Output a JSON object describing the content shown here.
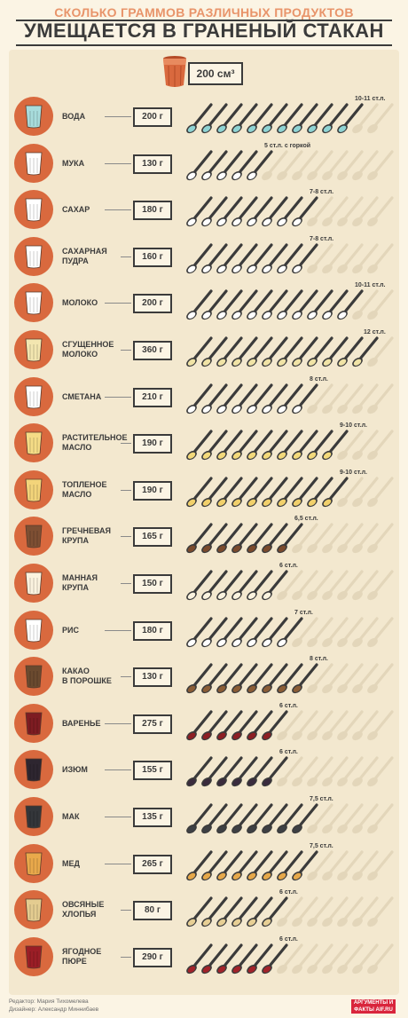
{
  "header": {
    "subtitle": "СКОЛЬКО ГРАММОВ РАЗЛИЧНЫХ ПРОДУКТОВ",
    "title": "УМЕЩАЕТСЯ В ГРАНЕНЫЙ СТАКАН"
  },
  "volume": {
    "value": "200",
    "unit": "см³"
  },
  "colors": {
    "accent": "#d9693e",
    "dark": "#3b3b3b",
    "panel": "#f3e8cf",
    "empty_spoon": "#e3d6ba"
  },
  "products": [
    {
      "name": "ВОДА",
      "weight": "200 г",
      "spoons": 10.5,
      "label": "10-11 ст.л.",
      "fill": "#8ed3d3",
      "glass": "#a8dcdc",
      "glass_icon": "water-glass-icon"
    },
    {
      "name": "МУКА",
      "weight": "130 г",
      "spoons": 5,
      "label": "5 ст.л. с горкой",
      "fill": "#ffffff",
      "glass": "#ffffff",
      "glass_icon": "flour-glass-icon"
    },
    {
      "name": "САХАР",
      "weight": "180 г",
      "spoons": 7.5,
      "label": "7-8 ст.л.",
      "fill": "#ffffff",
      "glass": "#ffffff",
      "glass_icon": "sugar-glass-icon"
    },
    {
      "name": "САХАРНАЯ ПУДРА",
      "weight": "160 г",
      "spoons": 7.5,
      "label": "7-8 ст.л.",
      "fill": "#ffffff",
      "glass": "#ffffff",
      "glass_icon": "powdered-sugar-glass-icon"
    },
    {
      "name": "МОЛОКО",
      "weight": "200 г",
      "spoons": 10.5,
      "label": "10-11 ст.л.",
      "fill": "#ffffff",
      "glass": "#ffffff",
      "glass_icon": "milk-glass-icon"
    },
    {
      "name": "СГУЩЕННОЕ МОЛОКО",
      "weight": "360 г",
      "spoons": 12,
      "label": "12 ст.л.",
      "fill": "#f0e3a6",
      "glass": "#f3e6b0",
      "glass_icon": "condensed-milk-glass-icon"
    },
    {
      "name": "СМЕТАНА",
      "weight": "210 г",
      "spoons": 8,
      "label": "8 ст.л.",
      "fill": "#ffffff",
      "glass": "#ffffff",
      "glass_icon": "sour-cream-glass-icon"
    },
    {
      "name": "РАСТИТЕЛЬНОЕ МАСЛО",
      "weight": "190 г",
      "spoons": 9.5,
      "label": "9-10 ст.л.",
      "fill": "#f3d97a",
      "glass": "#f5dc86",
      "glass_icon": "vegetable-oil-glass-icon"
    },
    {
      "name": "ТОПЛЕНОЕ МАСЛО",
      "weight": "190 г",
      "spoons": 9.5,
      "label": "9-10 ст.л.",
      "fill": "#f1d06b",
      "glass": "#f3d47a",
      "glass_icon": "ghee-glass-icon"
    },
    {
      "name": "ГРЕЧНЕВАЯ КРУПА",
      "weight": "165 г",
      "spoons": 6.5,
      "label": "6,5 ст.л.",
      "fill": "#7a4a2c",
      "glass": "#7e4f33",
      "glass_icon": "buckwheat-glass-icon"
    },
    {
      "name": "МАННАЯ КРУПА",
      "weight": "150 г",
      "spoons": 6,
      "label": "6 ст.л.",
      "fill": "#fbf3df",
      "glass": "#fbf3df",
      "glass_icon": "semolina-glass-icon"
    },
    {
      "name": "РИС",
      "weight": "180 г",
      "spoons": 7,
      "label": "7 ст.л.",
      "fill": "#ffffff",
      "glass": "#ffffff",
      "glass_icon": "rice-glass-icon"
    },
    {
      "name": "КАКАО В ПОРОШКЕ",
      "weight": "130 г",
      "spoons": 8,
      "label": "8 ст.л.",
      "fill": "#8a5c35",
      "glass": "#6b4a2f",
      "glass_icon": "cocoa-glass-icon"
    },
    {
      "name": "ВАРЕНЬЕ",
      "weight": "275 г",
      "spoons": 6,
      "label": "6 ст.л.",
      "fill": "#8d1f24",
      "glass": "#7e1c22",
      "glass_icon": "jam-glass-icon"
    },
    {
      "name": "ИЗЮМ",
      "weight": "155 г",
      "spoons": 6,
      "label": "6 ст.л.",
      "fill": "#3a2b3d",
      "glass": "#2e2630",
      "glass_icon": "raisins-glass-icon"
    },
    {
      "name": "МАК",
      "weight": "135 г",
      "spoons": 7.5,
      "label": "7,5 ст.л.",
      "fill": "#3e4044",
      "glass": "#34363a",
      "glass_icon": "poppy-seed-glass-icon"
    },
    {
      "name": "МЕД",
      "weight": "265 г",
      "spoons": 7.5,
      "label": "7,5 ст.л.",
      "fill": "#e6a84a",
      "glass": "#e9a94b",
      "glass_icon": "honey-glass-icon"
    },
    {
      "name": "ОВСЯНЫЕ ХЛОПЬЯ",
      "weight": "80 г",
      "spoons": 6,
      "label": "6 ст.л.",
      "fill": "#e7cf95",
      "glass": "#e4cc90",
      "glass_icon": "oat-flakes-glass-icon"
    },
    {
      "name": "ЯГОДНОЕ ПЮРЕ",
      "weight": "290 г",
      "spoons": 6,
      "label": "6 ст.л.",
      "fill": "#a2232a",
      "glass": "#9b1e26",
      "glass_icon": "berry-puree-glass-icon"
    }
  ],
  "footer": {
    "editor": "Редактор: Мария Тихомелева",
    "designer": "Дизайнер: Александр Миннибаев",
    "logo": "АРГУМЕНТЫ И ФАКТЫ AIF.RU"
  }
}
